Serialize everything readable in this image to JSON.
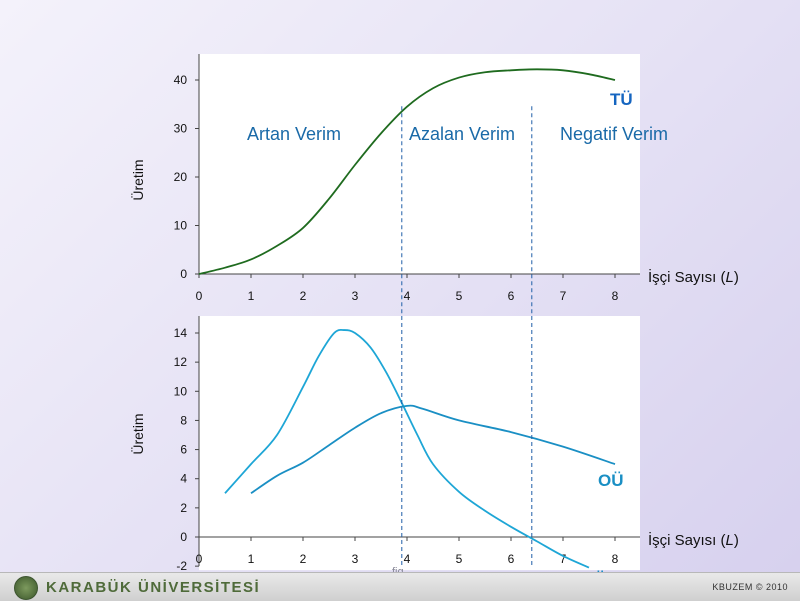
{
  "chart_data": [
    {
      "type": "line",
      "ylabel": "Üretim",
      "xlabel": "İşçi Sayısı (L)",
      "xlim": [
        0,
        8
      ],
      "ylim": [
        0,
        45
      ],
      "x_ticks": [
        "0",
        "1",
        "2",
        "3",
        "4",
        "5",
        "6",
        "7",
        "8"
      ],
      "y_ticks": [
        "0",
        "10",
        "20",
        "30",
        "40"
      ],
      "series": [
        {
          "name": "TÜ",
          "color": "#1f6b1f",
          "points": [
            [
              0,
              0
            ],
            [
              0.5,
              1.3
            ],
            [
              1,
              3
            ],
            [
              1.5,
              5.8
            ],
            [
              2,
              9.5
            ],
            [
              2.5,
              15.5
            ],
            [
              3,
              22.5
            ],
            [
              3.5,
              29
            ],
            [
              4,
              34.5
            ],
            [
              4.5,
              38.3
            ],
            [
              5,
              40.5
            ],
            [
              5.5,
              41.6
            ],
            [
              6,
              42
            ],
            [
              6.5,
              42.2
            ],
            [
              7,
              42
            ],
            [
              7.5,
              41.2
            ],
            [
              8,
              40
            ]
          ]
        }
      ],
      "annotations": [
        "Artan Verim",
        "Azalan Verim",
        "Negatif Verim"
      ],
      "vlines": [
        3.9,
        6.4
      ],
      "grid": false
    },
    {
      "type": "line",
      "ylabel": "Üretim",
      "xlabel": "İşçi Sayısı (L)",
      "xlim": [
        0,
        8
      ],
      "ylim": [
        -2,
        15
      ],
      "x_ticks": [
        "0",
        "1",
        "2",
        "3",
        "4",
        "5",
        "6",
        "7",
        "8"
      ],
      "y_ticks": [
        "-2",
        "0",
        "2",
        "4",
        "6",
        "8",
        "10",
        "12",
        "14"
      ],
      "series": [
        {
          "name": "MÜ",
          "color": "#1ea6d6",
          "points": [
            [
              0.5,
              3
            ],
            [
              1,
              5
            ],
            [
              1.5,
              7
            ],
            [
              2,
              10.3
            ],
            [
              2.3,
              12.4
            ],
            [
              2.6,
              14
            ],
            [
              2.8,
              14.2
            ],
            [
              3,
              14
            ],
            [
              3.3,
              13
            ],
            [
              3.6,
              11.3
            ],
            [
              3.9,
              9.2
            ],
            [
              4.2,
              7
            ],
            [
              4.5,
              5
            ],
            [
              5,
              3.1
            ],
            [
              5.5,
              1.8
            ],
            [
              6,
              0.7
            ],
            [
              6.5,
              -0.3
            ],
            [
              7,
              -1.3
            ],
            [
              7.5,
              -2.1
            ]
          ]
        },
        {
          "name": "OÜ",
          "color": "#1a8fc4",
          "points": [
            [
              1,
              3
            ],
            [
              1.5,
              4.2
            ],
            [
              2,
              5.1
            ],
            [
              2.5,
              6.3
            ],
            [
              3,
              7.5
            ],
            [
              3.5,
              8.5
            ],
            [
              4,
              9
            ],
            [
              4.3,
              8.8
            ],
            [
              5,
              8
            ],
            [
              6,
              7.2
            ],
            [
              7,
              6.2
            ],
            [
              8,
              5
            ]
          ]
        }
      ],
      "vlines": [
        3.9,
        6.4
      ],
      "grid": false
    }
  ],
  "caption": "fig",
  "footer": {
    "brand": "KARABÜK ÜNİVERSİTESİ",
    "right": "KBUZEM © 2010"
  },
  "colors": {
    "annotation": "#1a6aa8",
    "dashed": "#1f5fa8",
    "tu_label": "#1565c0",
    "ou_label": "#1a8fc4"
  }
}
